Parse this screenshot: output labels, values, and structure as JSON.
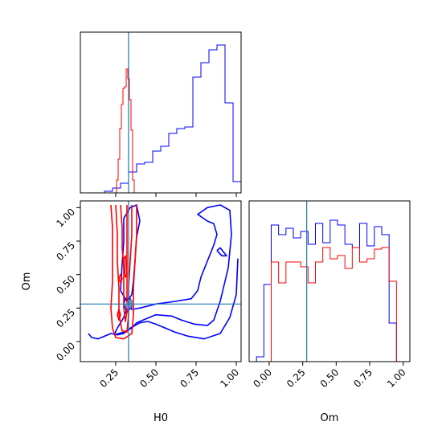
{
  "chart_data": {
    "type": "corner",
    "parameters": [
      "H0",
      "Om"
    ],
    "xlabels": {
      "bottom_left": "H0",
      "bottom_right": "Om"
    },
    "ylabels": {
      "lower_left": "Om"
    },
    "ranges": {
      "H0": [
        0.03,
        1.03
      ],
      "Om": [
        -0.15,
        1.05
      ]
    },
    "ticks": {
      "H0": {
        "values": [
          0.25,
          0.5,
          0.75,
          1.0
        ],
        "labels": [
          "0.25",
          "0.50",
          "0.75",
          "1.00"
        ]
      },
      "Om": {
        "values": [
          0.0,
          0.25,
          0.5,
          0.75,
          1.0
        ],
        "labels": [
          "0.00",
          "0.25",
          "0.50",
          "0.75",
          "1.00"
        ]
      }
    },
    "truth": {
      "H0": 0.33,
      "Om": 0.28
    },
    "colors": {
      "series_a": "#0000ff",
      "series_b": "#ff0000",
      "truth": "#1f77b4"
    },
    "hist_H0": {
      "blue": {
        "edges": [
          0.03,
          0.08,
          0.13,
          0.18,
          0.23,
          0.28,
          0.33,
          0.38,
          0.43,
          0.48,
          0.53,
          0.58,
          0.63,
          0.68,
          0.73,
          0.78,
          0.83,
          0.88,
          0.93,
          0.98,
          1.03
        ],
        "heights": [
          0,
          0,
          0,
          1,
          3,
          6,
          13,
          18,
          19,
          26,
          29,
          37,
          40,
          41,
          72,
          81,
          89,
          92,
          56,
          7
        ]
      },
      "red": {
        "edges": [
          0.245,
          0.255,
          0.265,
          0.275,
          0.285,
          0.295,
          0.305,
          0.315,
          0.325,
          0.335,
          0.345,
          0.355,
          0.365,
          0.375
        ],
        "heights": [
          0,
          8,
          21,
          40,
          55,
          65,
          66,
          77,
          71,
          58,
          39,
          8,
          0
        ]
      }
    },
    "hist_Om": {
      "blue": {
        "edges": [
          -0.15,
          -0.095,
          -0.04,
          0.015,
          0.07,
          0.125,
          0.18,
          0.235,
          0.29,
          0.345,
          0.4,
          0.455,
          0.51,
          0.565,
          0.62,
          0.675,
          0.73,
          0.785,
          0.84,
          0.895,
          0.95,
          1.005,
          1.05
        ],
        "heights": [
          0,
          3,
          48,
          85,
          79,
          83,
          77,
          81,
          73,
          86,
          74,
          88,
          85,
          73,
          71,
          86,
          72,
          84,
          79,
          24,
          0,
          0
        ]
      },
      "red": {
        "edges": [
          -0.15,
          -0.095,
          -0.04,
          0.015,
          0.07,
          0.125,
          0.18,
          0.235,
          0.29,
          0.345,
          0.4,
          0.455,
          0.51,
          0.565,
          0.62,
          0.675,
          0.73,
          0.785,
          0.84,
          0.895,
          0.95,
          1.005,
          1.05
        ],
        "heights": [
          0,
          0,
          0,
          62,
          49,
          62,
          62,
          59,
          49,
          62,
          71,
          64,
          66,
          58,
          71,
          62,
          64,
          70,
          71,
          50,
          0,
          0
        ]
      }
    },
    "contours": {
      "blue": [
        [
          [
            0.08,
            0.06
          ],
          [
            0.1,
            0.03
          ],
          [
            0.14,
            0.02
          ],
          [
            0.18,
            0.04
          ],
          [
            0.22,
            0.06
          ],
          [
            0.26,
            0.05
          ],
          [
            0.3,
            0.06
          ],
          [
            0.34,
            0.1
          ],
          [
            0.4,
            0.14
          ],
          [
            0.45,
            0.15
          ],
          [
            0.5,
            0.13
          ],
          [
            0.56,
            0.1
          ],
          [
            0.62,
            0.07
          ],
          [
            0.7,
            0.04
          ],
          [
            0.8,
            0.02
          ],
          [
            0.9,
            0.06
          ],
          [
            0.96,
            0.18
          ],
          [
            1.0,
            0.35
          ],
          [
            1.01,
            0.62
          ]
        ],
        [
          [
            0.24,
            0.05
          ],
          [
            0.3,
            0.07
          ],
          [
            0.35,
            0.1
          ],
          [
            0.38,
            0.14
          ],
          [
            0.5,
            0.2
          ],
          [
            0.6,
            0.19
          ],
          [
            0.66,
            0.16
          ],
          [
            0.74,
            0.13
          ],
          [
            0.82,
            0.12
          ],
          [
            0.86,
            0.16
          ],
          [
            0.9,
            0.3
          ],
          [
            0.95,
            0.55
          ],
          [
            0.97,
            0.8
          ],
          [
            0.96,
            0.98
          ],
          [
            0.9,
            1.02
          ],
          [
            0.82,
            1.0
          ],
          [
            0.76,
            0.95
          ],
          [
            0.82,
            0.9
          ],
          [
            0.86,
            0.88
          ],
          [
            0.88,
            0.8
          ],
          [
            0.86,
            0.72
          ],
          [
            0.82,
            0.6
          ],
          [
            0.78,
            0.48
          ],
          [
            0.76,
            0.38
          ],
          [
            0.72,
            0.32
          ],
          [
            0.62,
            0.3
          ],
          [
            0.5,
            0.28
          ],
          [
            0.4,
            0.25
          ],
          [
            0.35,
            0.24
          ],
          [
            0.33,
            0.28
          ],
          [
            0.3,
            0.18
          ],
          [
            0.26,
            0.1
          ],
          [
            0.24,
            0.05
          ]
        ],
        [
          [
            0.88,
            0.68
          ],
          [
            0.91,
            0.64
          ],
          [
            0.94,
            0.64
          ],
          [
            0.9,
            0.7
          ],
          [
            0.88,
            0.68
          ]
        ],
        [
          [
            0.28,
            0.38
          ],
          [
            0.29,
            0.58
          ],
          [
            0.3,
            0.75
          ],
          [
            0.3,
            0.92
          ],
          [
            0.34,
            1.0
          ],
          [
            0.38,
            1.02
          ],
          [
            0.4,
            0.9
          ],
          [
            0.38,
            0.78
          ],
          [
            0.37,
            0.6
          ],
          [
            0.36,
            0.45
          ],
          [
            0.35,
            0.35
          ],
          [
            0.32,
            0.3
          ],
          [
            0.28,
            0.38
          ]
        ],
        [
          [
            0.3,
            0.28
          ],
          [
            0.32,
            0.22
          ],
          [
            0.35,
            0.26
          ],
          [
            0.34,
            0.32
          ],
          [
            0.31,
            0.32
          ],
          [
            0.3,
            0.28
          ]
        ]
      ],
      "red": [
        [
          [
            0.22,
            1.02
          ],
          [
            0.23,
            0.85
          ],
          [
            0.23,
            0.65
          ],
          [
            0.23,
            0.45
          ],
          [
            0.22,
            0.25
          ],
          [
            0.23,
            0.1
          ],
          [
            0.25,
            0.03
          ],
          [
            0.3,
            0.02
          ],
          [
            0.35,
            0.06
          ],
          [
            0.36,
            0.2
          ],
          [
            0.36,
            0.4
          ],
          [
            0.37,
            0.6
          ],
          [
            0.38,
            0.8
          ],
          [
            0.38,
            1.02
          ]
        ],
        [
          [
            0.25,
            1.02
          ],
          [
            0.26,
            0.8
          ],
          [
            0.26,
            0.6
          ],
          [
            0.27,
            0.4
          ],
          [
            0.27,
            0.2
          ],
          [
            0.29,
            0.08
          ],
          [
            0.32,
            0.07
          ],
          [
            0.33,
            0.2
          ],
          [
            0.33,
            0.4
          ],
          [
            0.34,
            0.6
          ],
          [
            0.35,
            0.8
          ],
          [
            0.35,
            1.02
          ]
        ],
        [
          [
            0.28,
            1.02
          ],
          [
            0.29,
            0.85
          ],
          [
            0.29,
            0.7
          ],
          [
            0.3,
            0.55
          ],
          [
            0.3,
            0.4
          ],
          [
            0.3,
            0.25
          ],
          [
            0.31,
            0.15
          ],
          [
            0.32,
            0.22
          ],
          [
            0.32,
            0.4
          ],
          [
            0.32,
            0.55
          ],
          [
            0.32,
            0.7
          ],
          [
            0.32,
            0.85
          ],
          [
            0.32,
            1.02
          ]
        ],
        [
          [
            0.3,
            0.62
          ],
          [
            0.31,
            0.48
          ],
          [
            0.32,
            0.5
          ],
          [
            0.31,
            0.64
          ],
          [
            0.3,
            0.62
          ]
        ],
        [
          [
            0.27,
            0.47
          ],
          [
            0.28,
            0.44
          ],
          [
            0.29,
            0.47
          ],
          [
            0.28,
            0.5
          ],
          [
            0.27,
            0.47
          ]
        ],
        [
          [
            0.26,
            0.2
          ],
          [
            0.27,
            0.16
          ],
          [
            0.28,
            0.2
          ],
          [
            0.27,
            0.24
          ],
          [
            0.26,
            0.2
          ]
        ]
      ]
    },
    "points": [
      {
        "x": 0.33,
        "y": 0.27,
        "color": "#6f8fbf"
      },
      {
        "x": 0.34,
        "y": 0.29,
        "color": "#6f8fbf"
      }
    ]
  }
}
